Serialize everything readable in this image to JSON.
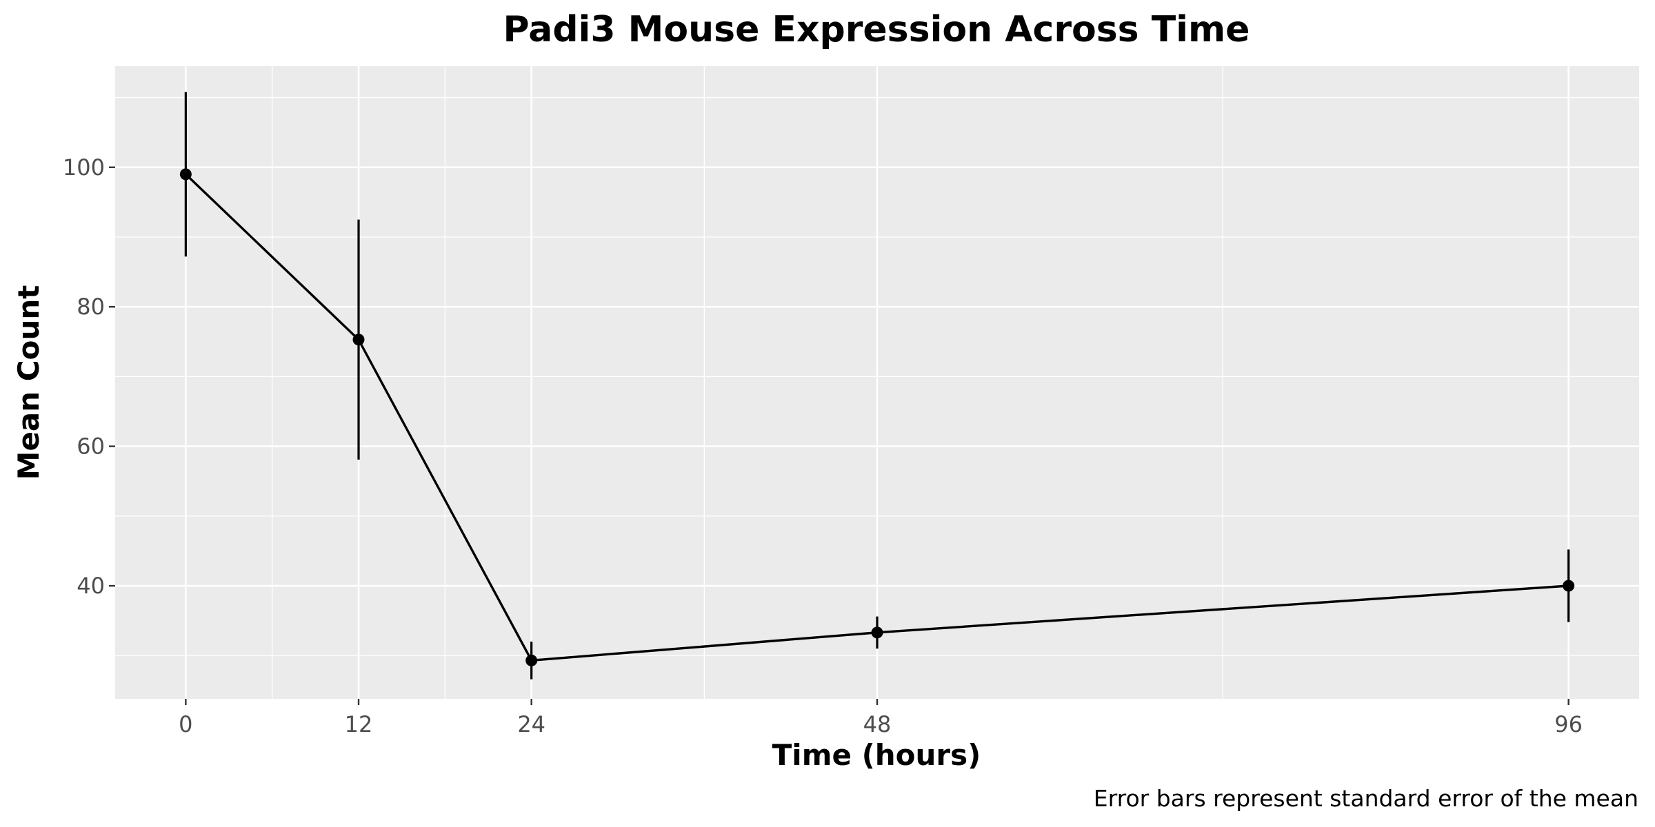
{
  "chart_data": {
    "type": "line",
    "title": "Padi3 Mouse Expression Across Time",
    "xlabel": "Time (hours)",
    "ylabel": "Mean Count",
    "caption": "Error bars represent standard error of the mean",
    "x": [
      0,
      12,
      24,
      48,
      96
    ],
    "series": [
      {
        "values": [
          99.0,
          75.3,
          29.3,
          33.3,
          40.0
        ],
        "error_low": [
          87.2,
          58.1,
          26.6,
          31.0,
          34.8
        ],
        "error_high": [
          110.8,
          92.5,
          32.0,
          35.6,
          45.2
        ]
      }
    ],
    "xticks": [
      0,
      12,
      24,
      48,
      96
    ],
    "yticks": [
      40,
      60,
      80,
      100
    ],
    "xlim": [
      -4.9,
      100.9
    ],
    "ylim": [
      23.8,
      114.5
    ],
    "grid": true,
    "panel_background": "#ebebeb",
    "grid_color": "#ffffff",
    "line_color": "#000000",
    "point_color": "#000000"
  }
}
